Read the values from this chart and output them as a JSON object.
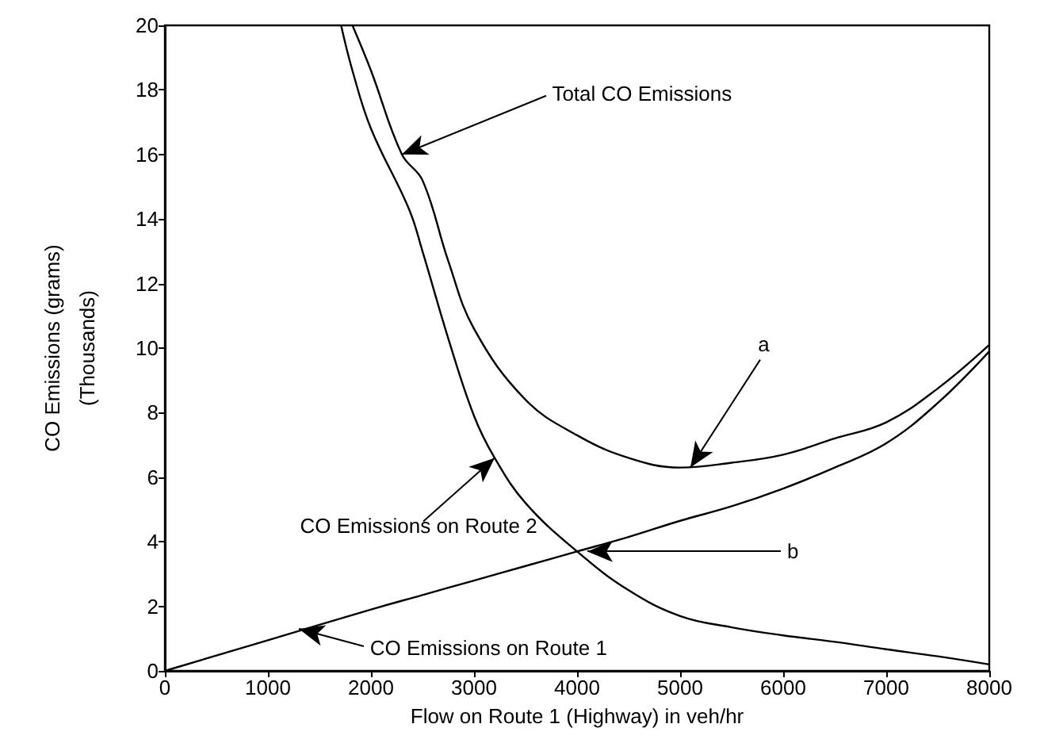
{
  "chart_data": {
    "type": "line",
    "xlabel": "Flow on Route 1 (Highway) in veh/hr",
    "ylabel": "CO Emissions (grams)\n(Thousands)",
    "xlim": [
      0,
      8000
    ],
    "xticks": [
      0,
      1000,
      2000,
      3000,
      4000,
      5000,
      6000,
      7000,
      8000
    ],
    "ylim": [
      0,
      20
    ],
    "yticks": [
      0,
      2,
      4,
      6,
      8,
      10,
      12,
      14,
      16,
      18,
      20
    ],
    "grid": false,
    "marker": "none",
    "line_style": "solid",
    "series": [
      {
        "color": "#000000",
        "x": [
          0,
          1000,
          2000,
          2500,
          3000,
          3500,
          4000,
          4500,
          5000,
          5500,
          6000,
          6500,
          7000,
          7500,
          8000
        ],
        "values": [
          0,
          0.95,
          1.9,
          2.35,
          2.8,
          3.25,
          3.7,
          4.15,
          4.65,
          5.1,
          5.65,
          6.3,
          7.05,
          8.3,
          9.9
        ]
      },
      {
        "color": "#000000",
        "x": [
          1710,
          1820,
          2000,
          2370,
          2500,
          2750,
          3000,
          3200,
          3500,
          4000,
          4500,
          5000,
          5500,
          6000,
          6500,
          7000,
          7500,
          8000
        ],
        "values": [
          20,
          18.6,
          16.8,
          14.3,
          13.0,
          10.3,
          7.9,
          6.6,
          5.2,
          3.7,
          2.5,
          1.7,
          1.35,
          1.1,
          0.9,
          0.67,
          0.45,
          0.2
        ]
      },
      {
        "color": "#000000",
        "x": [
          1820,
          2000,
          2300,
          2500,
          2750,
          3000,
          3500,
          4000,
          4500,
          5000,
          5500,
          6000,
          6500,
          7000,
          7500,
          8000
        ],
        "values": [
          20,
          18.6,
          16,
          15.2,
          12.7,
          10.6,
          8.4,
          7.3,
          6.6,
          6.3,
          6.45,
          6.7,
          7.2,
          7.7,
          8.75,
          10.1
        ]
      }
    ],
    "annotations": [
      {
        "text": "Total CO Emissions",
        "x": 2300,
        "y": 16
      },
      {
        "text": "a",
        "x": 5100,
        "y": 6.3
      },
      {
        "text": "b",
        "x": 4100,
        "y": 3.7
      },
      {
        "text": "CO Emissions on Route 2",
        "x": 3200,
        "y": 6.6
      },
      {
        "text": "CO Emissions on Route 1",
        "x": 1300,
        "y": 1.3
      }
    ]
  }
}
